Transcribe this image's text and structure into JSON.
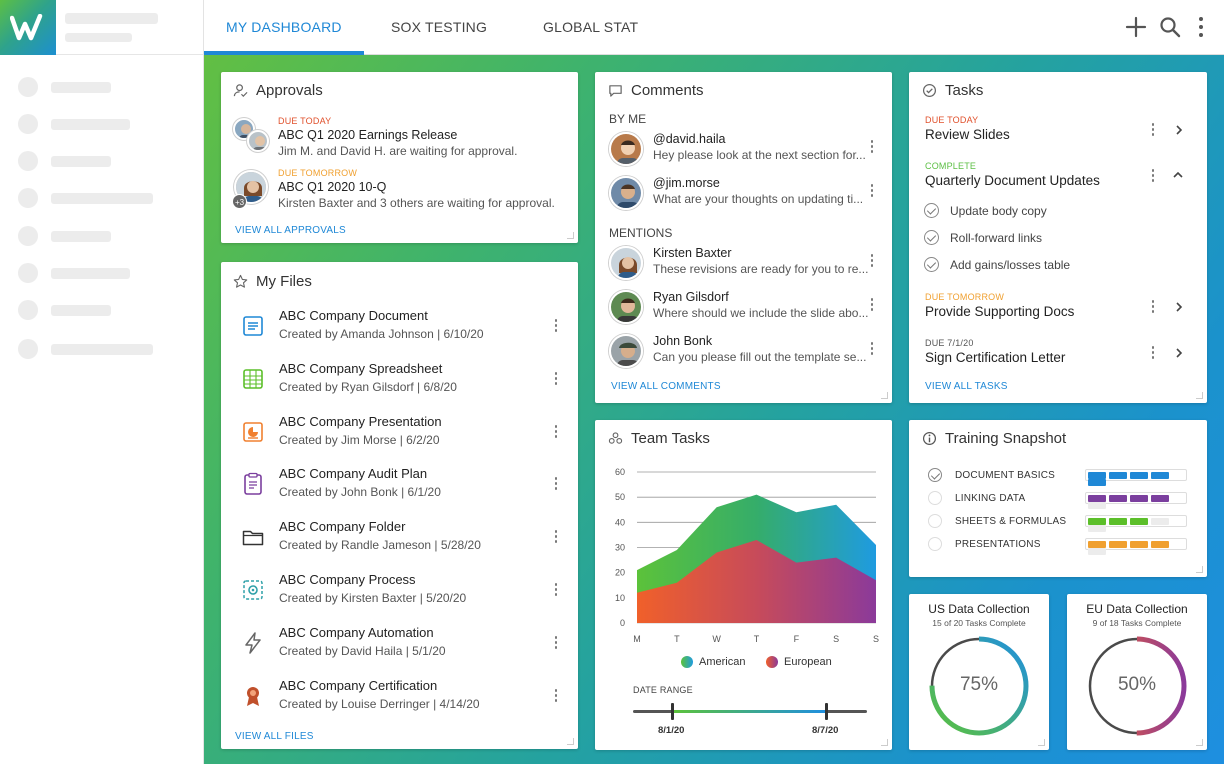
{
  "nav": {
    "tabs": [
      {
        "label": "MY DASHBOARD"
      },
      {
        "label": "SOX TESTING"
      },
      {
        "label": "GLOBAL STAT"
      }
    ]
  },
  "approvals": {
    "title": "Approvals",
    "items": [
      {
        "due": "DUE TODAY",
        "name": "ABC Q1 2020 Earnings Release",
        "note": "Jim M. and David H. are waiting for approval."
      },
      {
        "due": "DUE TOMORROW",
        "name": "ABC Q1 2020 10-Q",
        "note": "Kirsten Baxter  and 3 others are waiting for approval.",
        "badge": "+3"
      }
    ],
    "link": "VIEW ALL APPROVALS"
  },
  "files": {
    "title": "My Files",
    "items": [
      {
        "name": "ABC Company Document",
        "meta": "Created by Amanda Johnson | 6/10/20",
        "icon": "document-icon"
      },
      {
        "name": "ABC Company Spreadsheet",
        "meta": "Created by Ryan Gilsdorf | 6/8/20",
        "icon": "spreadsheet-icon"
      },
      {
        "name": "ABC Company Presentation",
        "meta": "Created by Jim Morse | 6/2/20",
        "icon": "presentation-icon"
      },
      {
        "name": "ABC Company Audit Plan",
        "meta": "Created by John Bonk | 6/1/20",
        "icon": "audit-plan-icon"
      },
      {
        "name": "ABC Company Folder",
        "meta": "Created by Randle Jameson | 5/28/20",
        "icon": "folder-icon"
      },
      {
        "name": "ABC Company Process",
        "meta": "Created by Kirsten Baxter | 5/20/20",
        "icon": "process-icon"
      },
      {
        "name": "ABC Company Automation",
        "meta": "Created by David Haila | 5/1/20",
        "icon": "automation-icon"
      },
      {
        "name": "ABC Company Certification",
        "meta": "Created by Louise Derringer | 4/14/20",
        "icon": "certification-icon"
      }
    ],
    "link": "VIEW ALL FILES"
  },
  "comments": {
    "title": "Comments",
    "by_me_label": "BY ME",
    "mentions_label": "MENTIONS",
    "by_me": [
      {
        "name": "@david.haila",
        "text": "Hey please look at the next section for..."
      },
      {
        "name": "@jim.morse",
        "text": "What are your thoughts on updating ti..."
      }
    ],
    "mentions": [
      {
        "name": "Kirsten Baxter",
        "text": "These revisions are ready for you to re..."
      },
      {
        "name": "Ryan Gilsdorf",
        "text": "Where should we include the slide abo..."
      },
      {
        "name": "John Bonk",
        "text": "Can you please fill out the template se..."
      }
    ],
    "link": "VIEW ALL COMMENTS"
  },
  "tasks": {
    "title": "Tasks",
    "items": [
      {
        "status": "DUE TODAY",
        "name": "Review Slides",
        "color": "#e0502b"
      },
      {
        "status": "COMPLETE",
        "name": "Quarterly Document Updates",
        "color": "#5cbf45"
      },
      {
        "status": "DUE TOMORROW",
        "name": "Provide Supporting Docs",
        "color": "#f0a030"
      },
      {
        "status": "DUE 7/1/20",
        "name": "Sign Certification Letter",
        "color": "#555555"
      }
    ],
    "subtasks": [
      "Update body copy",
      "Roll-forward links",
      "Add gains/losses table"
    ],
    "link": "VIEW ALL TASKS"
  },
  "team_tasks": {
    "title": "Team Tasks",
    "legend": [
      "American",
      "European"
    ],
    "date_range_label": "DATE RANGE",
    "date_start": "8/1/20",
    "date_end": "8/7/20"
  },
  "chart_data": {
    "type": "area",
    "categories": [
      "M",
      "T",
      "W",
      "T",
      "F",
      "S",
      "S"
    ],
    "series": [
      {
        "name": "American",
        "values": [
          21,
          29,
          46,
          51,
          44,
          47,
          31
        ]
      },
      {
        "name": "European",
        "values": [
          12,
          16,
          28,
          33,
          24,
          26,
          17
        ]
      }
    ],
    "ylim": [
      0,
      60
    ],
    "yticks": [
      "0",
      "10",
      "20",
      "30",
      "40",
      "50",
      "60"
    ],
    "grid": true,
    "legend_position": "bottom"
  },
  "training": {
    "title": "Training Snapshot",
    "items": [
      {
        "label": "DOCUMENT BASICS",
        "done": 5,
        "total": 5,
        "color": "#1f88d6",
        "checked": true
      },
      {
        "label": "LINKING DATA",
        "done": 4,
        "total": 5,
        "color": "#7b3f9e",
        "checked": false
      },
      {
        "label": "SHEETS & FORMULAS",
        "done": 3,
        "total": 5,
        "color": "#5cbf2a",
        "checked": false
      },
      {
        "label": "PRESENTATIONS",
        "done": 4,
        "total": 5,
        "color": "#f0a030",
        "checked": false
      }
    ]
  },
  "us_collection": {
    "title": "US Data Collection",
    "done": "15",
    "of_label": "of",
    "total": "20",
    "suffix": "Tasks Complete",
    "percent": "75%",
    "fraction": 0.75
  },
  "eu_collection": {
    "title": "EU Data Collection",
    "done": "9",
    "of_label": "of",
    "total": "18",
    "suffix": "Tasks Complete",
    "percent": "50%",
    "fraction": 0.5
  },
  "colors": {
    "accent": "#1f88d6",
    "due_today": "#e0502b",
    "due_tomorrow": "#f0a030",
    "complete": "#5cbf45"
  }
}
